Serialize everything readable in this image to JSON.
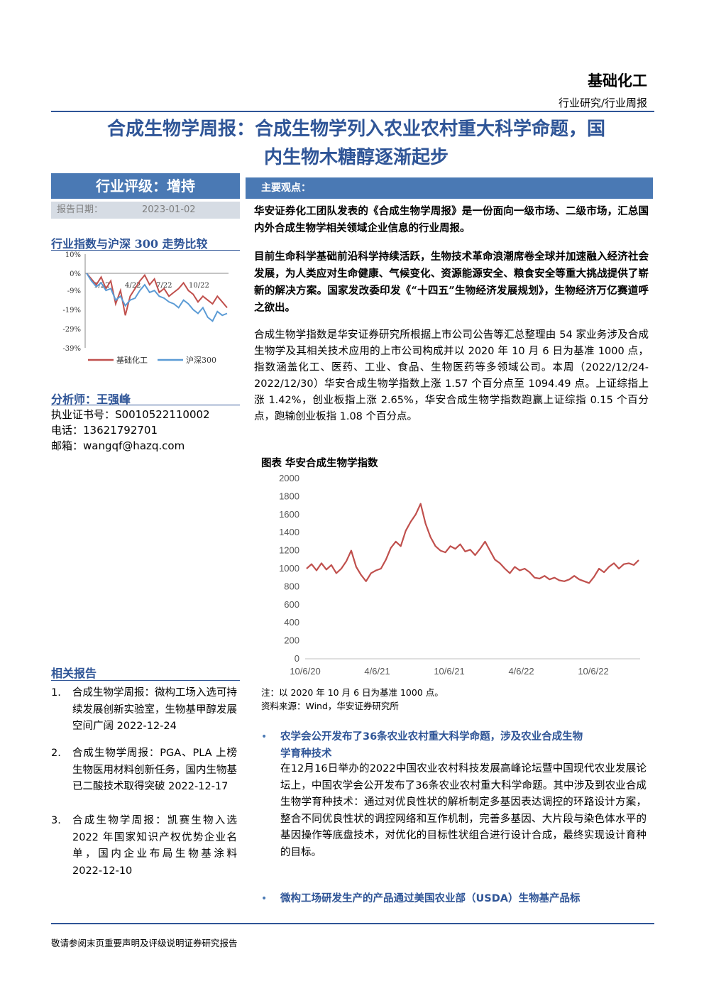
{
  "header": {
    "sector": "基础化工",
    "report_type": "行业研究/行业周报"
  },
  "title": {
    "line1": "合成生物学周报：合成生物学列入农业农村重大科学命题，国",
    "line2": "内生物木糖醇逐渐起步"
  },
  "sidebar": {
    "rating": "行业评级：增持",
    "date_label": "报告日期：",
    "date_value": "2023-01-02",
    "chart_heading": "行业指数与沪深 300 走势比较",
    "analyst_heading": "分析师：王强峰",
    "cert_label": "执业证书号：",
    "cert_value": "S0010522110002",
    "phone_label": "电话：",
    "phone_value": "13621792701",
    "email_label": "邮箱：",
    "email_value": "wangqf@hazq.com",
    "related_heading": "相关报告",
    "related_reports": [
      {
        "num": "1.",
        "text": "合成生物学周报：微构工场入选可持续发展创新实验室，生物基甲醇发展空间广阔 2022-12-24"
      },
      {
        "num": "2.",
        "text": "合成生物学周报：PGA、PLA 上榜生物医用材料创新任务，国内生物基已二酸技术取得突破 2022-12-17"
      },
      {
        "num": "3.",
        "text": "合成生物学周报：凯赛生物入选 2022 年国家知识产权优势企业名单，国内企业布局生物基涂料 2022-12-10"
      }
    ]
  },
  "main": {
    "section_label": "主要观点：",
    "para1": "华安证券化工团队发表的《合成生物学周报》是一份面向一级市场、二级市场，汇总国内外合成生物学相关领域企业信息的行业周报。",
    "para2": "目前生命科学基础前沿科学持续活跃，生物技术革命浪潮席卷全球并加速融入经济社会发展，为人类应对生命健康、气候变化、资源能源安全、粮食安全等重大挑战提供了崭新的解决方案。国家发改委印发《“十四五”生物经济发展规划》，生物经济万亿赛道呼之欲出。",
    "para3": "合成生物学指数是华安证券研究所根据上市公司公告等汇总整理由 54 家业务涉及合成生物学及其相关技术应用的上市公司构成并以 2020 年 10 月 6 日为基准 1000 点，指数涵盖化工、医药、工业、食品、生物医药等多领域公司。本周（2022/12/24-2022/12/30）华安合成生物学指数上涨 1.57 个百分点至 1094.49 点。上证综指上涨 1.42%，创业板指上涨 2.65%，华安合成生物学指数跑赢上证综指 0.15 个百分点，跑输创业板指 1.08 个百分点。",
    "figure_title": "图表 华安合成生物学指数",
    "note1": "注：以 2020 年 10 月 6 日为基准 1000 点。",
    "note2": "资料来源：Wind，华安证券研究所",
    "bullet1_title_a": "农学会公开发布了36条农业农村重大科学命题，涉及农业合成生物",
    "bullet1_title_b": "学育种技术",
    "bullet1_body": "在12月16日举办的2022中国农业农村科技发展高峰论坛暨中国现代农业发展论坛上，中国农学会公开发布了36条农业农村重大科学命题。其中涉及到农业合成生物学育种技术：通过对优良性状的解析制定多基因表达调控的环路设计方案，整合不同优良性状的调控网络和互作机制，完善多基因、大片段与染色体水平的基因操作等底盘技术，对优化的目标性状组合进行设计合成，最终实现设计育种的目标。",
    "bullet2_title": "微构工场研发生产的产品通过美国农业部（USDA）生物基产品标"
  },
  "footer": {
    "text": "敬请参阅末页重要声明及评级说明证券研究报告"
  },
  "colors": {
    "brand_blue": "#2f5597",
    "bar_blue": "#4a79b4",
    "series_red": "#c0504d",
    "series_blue": "#5b9bd5"
  },
  "chart_data": [
    {
      "type": "line",
      "x_ticks": [
        "1/22",
        "4/22",
        "7/22",
        "10/22"
      ],
      "y_ticks": [
        "10%",
        "0%",
        "-9%",
        "-19%",
        "-29%",
        "-39%"
      ],
      "ylim": [
        -39,
        10
      ],
      "series": [
        {
          "name": "基础化工",
          "color": "#c0504d",
          "values": [
            0,
            -3,
            -6,
            -2,
            -8,
            -4,
            -16,
            -9,
            -22,
            -12,
            -8,
            -4,
            -1,
            -6,
            -3,
            -10,
            -8,
            -12,
            -10,
            -8,
            -5,
            -9,
            -11,
            -15,
            -12,
            -14,
            -16,
            -12,
            -15,
            -18
          ]
        },
        {
          "name": "沪深300",
          "color": "#5b9bd5",
          "values": [
            0,
            -4,
            -7,
            -5,
            -9,
            -8,
            -14,
            -12,
            -17,
            -14,
            -13,
            -9,
            -6,
            -10,
            -9,
            -12,
            -13,
            -15,
            -16,
            -18,
            -14,
            -16,
            -19,
            -21,
            -18,
            -23,
            -25,
            -20,
            -22,
            -21
          ]
        }
      ]
    },
    {
      "type": "line",
      "title": "图表 华安合成生物学指数",
      "x_ticks": [
        "10/6/20",
        "4/6/21",
        "10/6/21",
        "4/6/22",
        "10/6/22"
      ],
      "y_ticks": [
        0,
        200,
        400,
        600,
        800,
        1000,
        1200,
        1400,
        1600,
        1800,
        2000
      ],
      "ylim": [
        0,
        2000
      ],
      "series": [
        {
          "name": "华安合成生物学指数",
          "color": "#c0504d",
          "values": [
            1000,
            1050,
            980,
            1060,
            990,
            1040,
            950,
            1000,
            1080,
            1200,
            1020,
            930,
            860,
            950,
            980,
            1000,
            1100,
            1230,
            1300,
            1250,
            1420,
            1520,
            1600,
            1720,
            1500,
            1350,
            1250,
            1200,
            1180,
            1250,
            1220,
            1270,
            1190,
            1210,
            1150,
            1220,
            1300,
            1200,
            1100,
            1060,
            1000,
            950,
            1020,
            980,
            1000,
            960,
            900,
            890,
            920,
            880,
            900,
            870,
            860,
            880,
            920,
            880,
            860,
            840,
            910,
            1000,
            960,
            1020,
            1060,
            1000,
            1050,
            1060,
            1040,
            1094
          ]
        }
      ]
    }
  ]
}
